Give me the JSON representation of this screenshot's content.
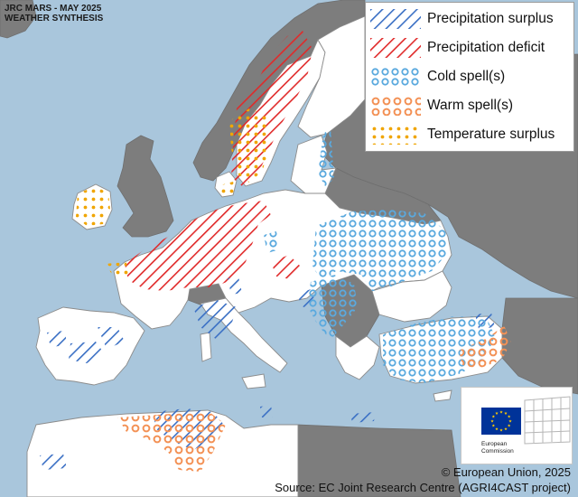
{
  "header": {
    "line1": "JRC MARS - MAY 2025",
    "line2": "WEATHER SYNTHESIS"
  },
  "legend": {
    "items": [
      {
        "key": "precipitation_surplus",
        "label": "Precipitation surplus",
        "color": "#3a6fc4",
        "pattern": "diagonal-hatch"
      },
      {
        "key": "precipitation_deficit",
        "label": "Precipitation deficit",
        "color": "#e02a2a",
        "pattern": "diagonal-hatch"
      },
      {
        "key": "cold_spell",
        "label": "Cold spell(s)",
        "color": "#5aa9de",
        "pattern": "rings"
      },
      {
        "key": "warm_spell",
        "label": "Warm spell(s)",
        "color": "#f39155",
        "pattern": "rings"
      },
      {
        "key": "temperature_surplus",
        "label": "Temperature surplus",
        "color": "#f0a500",
        "pattern": "dots"
      }
    ]
  },
  "logo": {
    "line1": "European",
    "line2": "Commission"
  },
  "footer": {
    "copyright": "© European Union, 2025",
    "source": "Source: EC Joint Research Centre (AGRI4CAST project)"
  },
  "colors": {
    "sea": "#a9c6dc",
    "land_in_scope": "#ffffff",
    "land_out_of_scope": "#7d7d7d",
    "borders": "#8c8c8c",
    "eu_blue": "#003399",
    "eu_star": "#ffcc00"
  }
}
